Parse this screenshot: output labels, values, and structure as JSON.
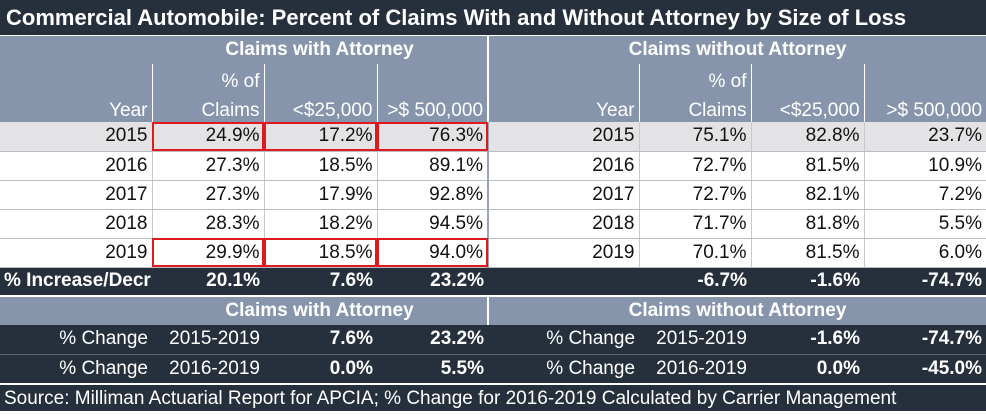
{
  "title": "Commercial Automobile: Percent of Claims With and Without Attorney by Size of Loss",
  "groups": {
    "with": "Claims with Attorney",
    "without": "Claims without Attorney"
  },
  "headers": {
    "year": "Year",
    "pct_top": "% of",
    "pct_bottom": "Claims",
    "small": "<$25,000",
    "large": ">$ 500,000"
  },
  "rows": [
    {
      "year": "2015",
      "w_pct": "24.9%",
      "w_small": "17.2%",
      "w_large": "76.3%",
      "wo_year": "2015",
      "wo_pct": "75.1%",
      "wo_small": "82.8%",
      "wo_large": "23.7%"
    },
    {
      "year": "2016",
      "w_pct": "27.3%",
      "w_small": "18.5%",
      "w_large": "89.1%",
      "wo_year": "2016",
      "wo_pct": "72.7%",
      "wo_small": "81.5%",
      "wo_large": "10.9%"
    },
    {
      "year": "2017",
      "w_pct": "27.3%",
      "w_small": "17.9%",
      "w_large": "92.8%",
      "wo_year": "2017",
      "wo_pct": "72.7%",
      "wo_small": "82.1%",
      "wo_large": "7.2%"
    },
    {
      "year": "2018",
      "w_pct": "28.3%",
      "w_small": "18.2%",
      "w_large": "94.5%",
      "wo_year": "2018",
      "wo_pct": "71.7%",
      "wo_small": "81.8%",
      "wo_large": "5.5%"
    },
    {
      "year": "2019",
      "w_pct": "29.9%",
      "w_small": "18.5%",
      "w_large": "94.0%",
      "wo_year": "2019",
      "wo_pct": "70.1%",
      "wo_small": "81.5%",
      "wo_large": "6.0%"
    }
  ],
  "summary": {
    "label": "% Increase/Decr",
    "w_pct": "20.1%",
    "w_small": "7.6%",
    "w_large": "23.2%",
    "wo_pct": "-6.7%",
    "wo_small": "-1.6%",
    "wo_large": "-74.7%"
  },
  "changes": [
    {
      "label": "% Change",
      "period": "2015-2019",
      "w_small": "7.6%",
      "w_large": "23.2%",
      "wo_label": "% Change",
      "wo_period": "2015-2019",
      "wo_small": "-1.6%",
      "wo_large": "-74.7%"
    },
    {
      "label": "% Change",
      "period": "2016-2019",
      "w_small": "0.0%",
      "w_large": "5.5%",
      "wo_label": "% Change",
      "wo_period": "2016-2019",
      "wo_small": "0.0%",
      "wo_large": "-45.0%"
    }
  ],
  "source": "Source: Milliman Actuarial Report for APCIA; % Change for 2016-2019  Calculated by Carrier Management",
  "colors": {
    "dark": "#26303d",
    "header": "#8795ac",
    "row_alt": "#e3e3e5",
    "highlight": "#e0191e"
  }
}
